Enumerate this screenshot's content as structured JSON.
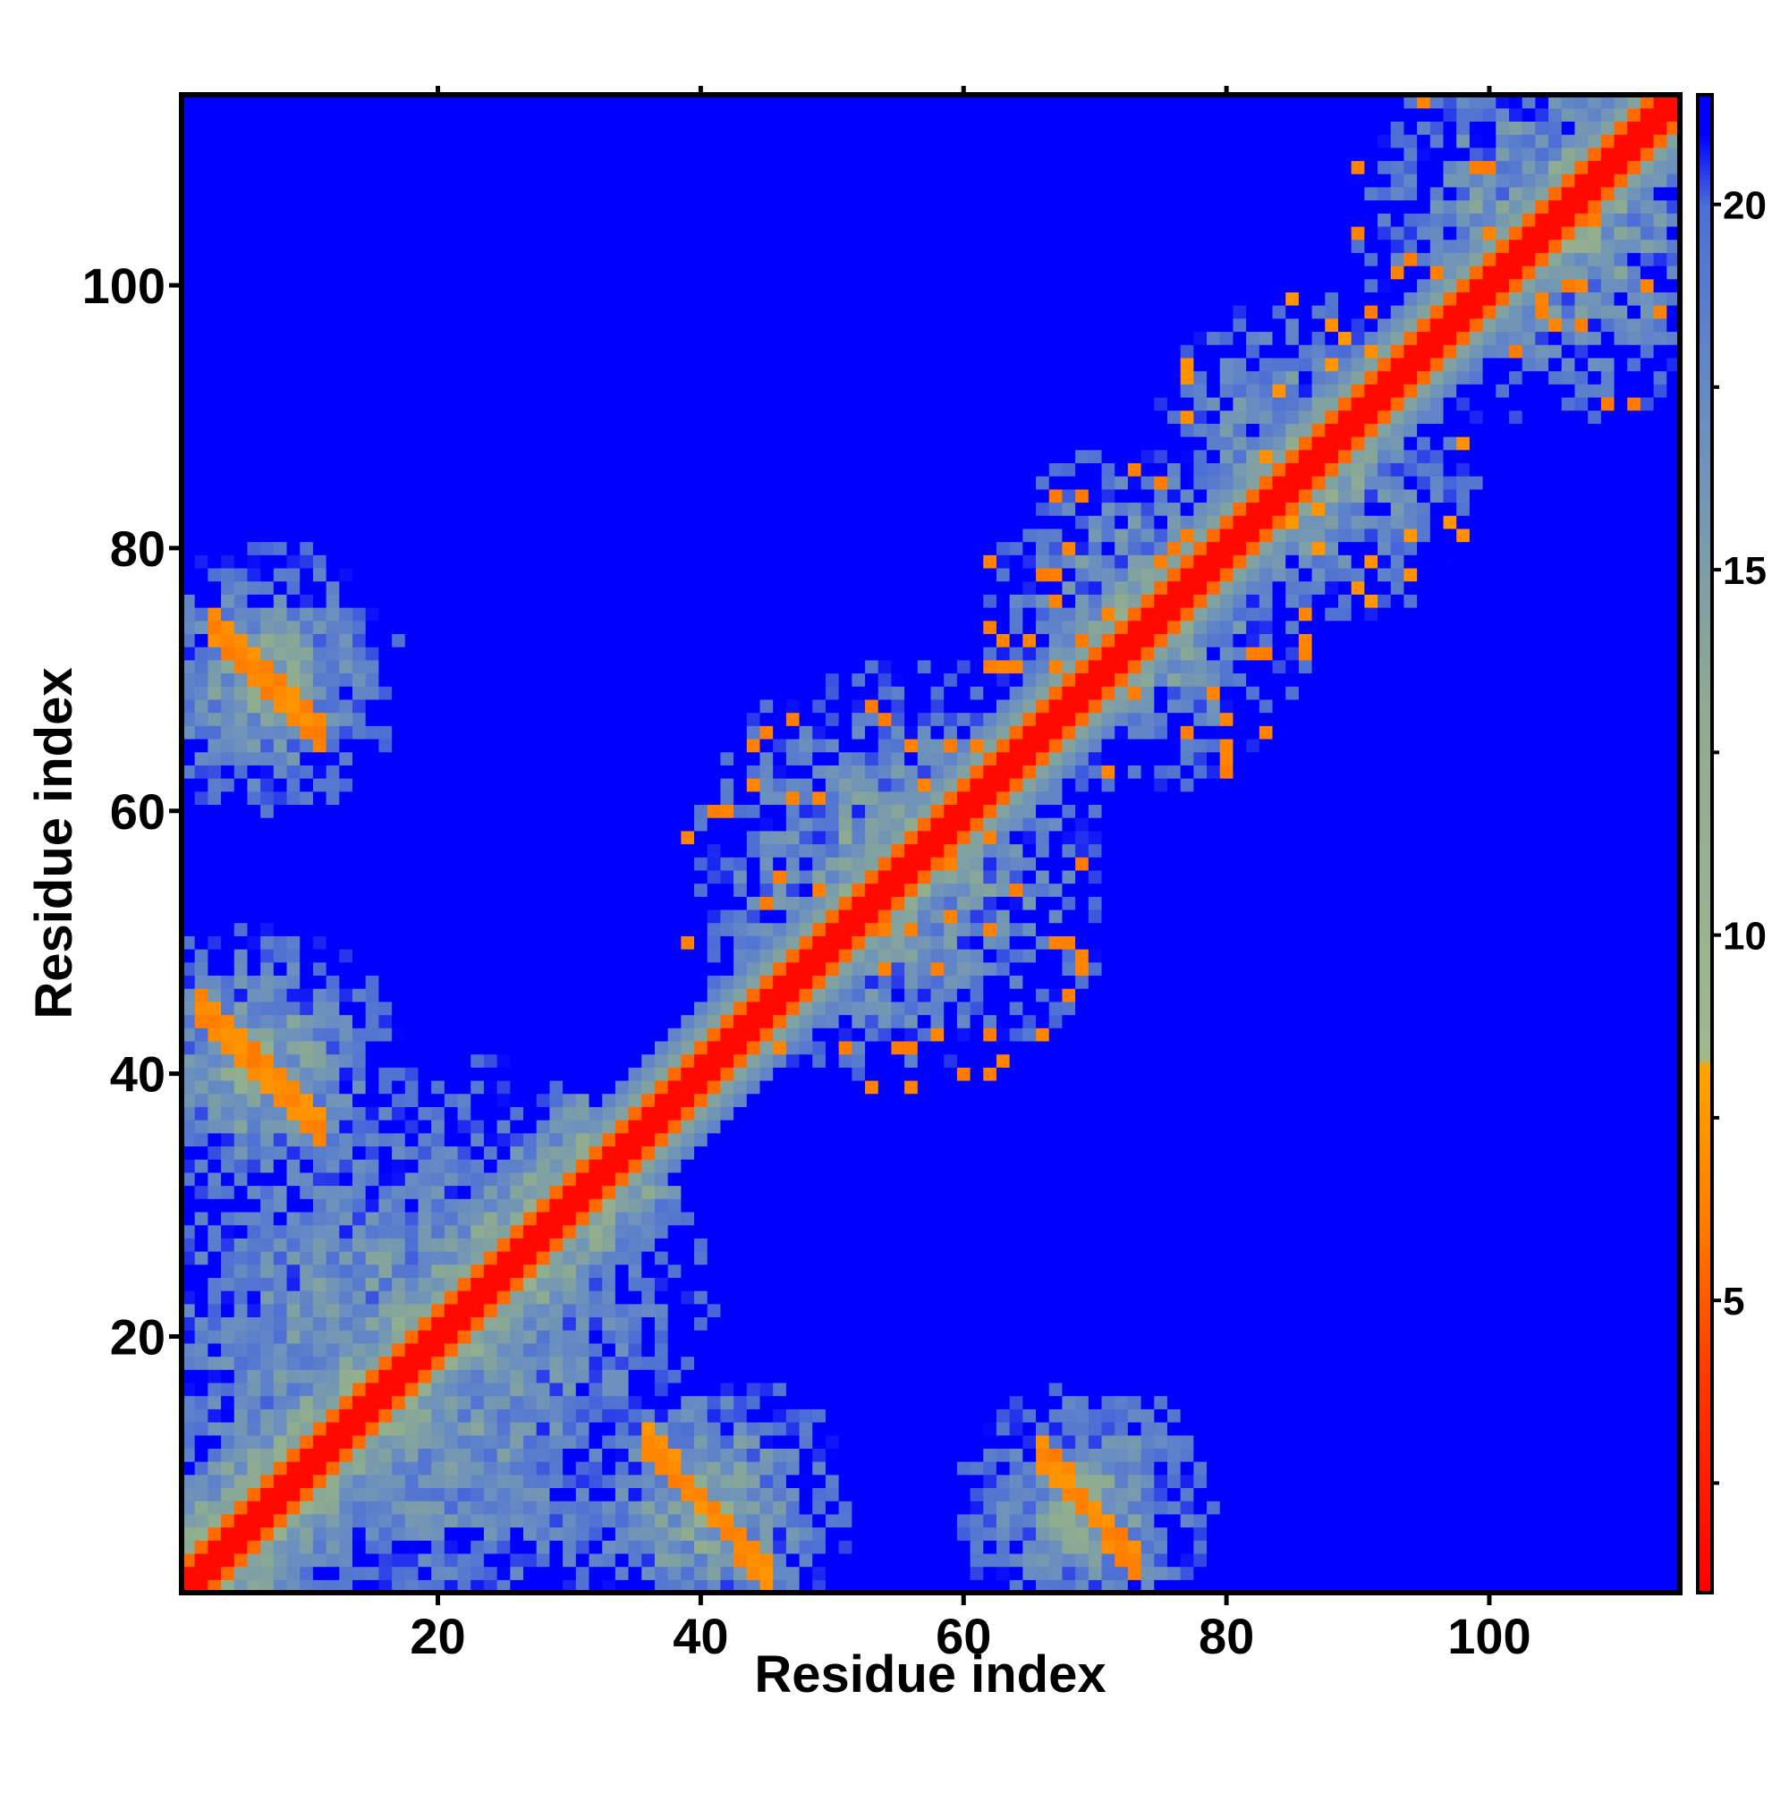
{
  "chart_data": {
    "type": "heatmap",
    "title": "",
    "xlabel": "Residue index",
    "ylabel": "Residue index",
    "n_residues": 114,
    "xlim": [
      1,
      114
    ],
    "ylim": [
      1,
      114
    ],
    "x_ticks": [
      20,
      40,
      60,
      80,
      100
    ],
    "y_ticks": [
      20,
      40,
      60,
      80,
      100
    ],
    "colorbar": {
      "range": [
        1,
        21.5
      ],
      "ticks": [
        5,
        10,
        15,
        20
      ],
      "stops": [
        {
          "value": 1,
          "color": "#ff0000"
        },
        {
          "value": 4,
          "color": "#ff3a00"
        },
        {
          "value": 6,
          "color": "#ff7a00"
        },
        {
          "value": 8.2,
          "color": "#ffa500"
        },
        {
          "value": 8.3,
          "color": "#9fb88c"
        },
        {
          "value": 13,
          "color": "#8fac90"
        },
        {
          "value": 17,
          "color": "#6a8fc0"
        },
        {
          "value": 20,
          "color": "#4d6fd6"
        },
        {
          "value": 21,
          "color": "#0000ff"
        }
      ]
    },
    "cap_value": 21,
    "contact_regions": [
      {
        "kind": "helix",
        "x": [
          1,
          35
        ],
        "y": [
          1,
          35
        ],
        "value": 1
      },
      {
        "kind": "sheet",
        "x": [
          36,
          45
        ],
        "y": [
          2,
          12
        ],
        "value": 6
      },
      {
        "kind": "sheet",
        "x": [
          66,
          73
        ],
        "y": [
          3,
          11
        ],
        "value": 6
      },
      {
        "kind": "sheet",
        "x": [
          2,
          11
        ],
        "y": [
          36,
          45
        ],
        "value": 6
      },
      {
        "kind": "sheet",
        "x": [
          3,
          11
        ],
        "y": [
          66,
          74
        ],
        "value": 6
      },
      {
        "kind": "cluster",
        "x": [
          45,
          65
        ],
        "y": [
          45,
          65
        ],
        "value": 6
      },
      {
        "kind": "cluster",
        "x": [
          68,
          80
        ],
        "y": [
          68,
          82
        ],
        "value": 6
      },
      {
        "kind": "cluster",
        "x": [
          80,
          93
        ],
        "y": [
          80,
          93
        ],
        "value": 7
      },
      {
        "kind": "cluster",
        "x": [
          96,
          114
        ],
        "y": [
          96,
          114
        ],
        "value": 6
      }
    ]
  }
}
